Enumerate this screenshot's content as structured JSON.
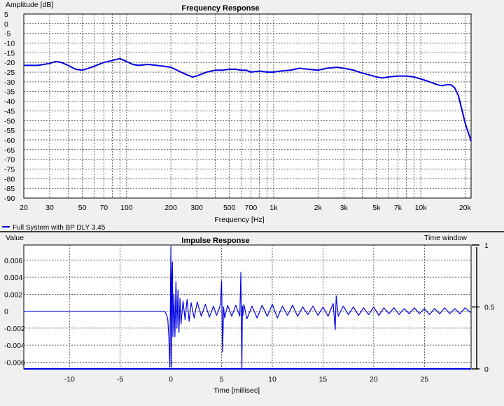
{
  "chart_data": [
    {
      "type": "line",
      "title": "Frequency Response",
      "xlabel": "Frequency [Hz]",
      "ylabel": "Amplitude [dB]",
      "xscale": "log",
      "xlim": [
        20,
        22000
      ],
      "ylim": [
        -90,
        5
      ],
      "grid": true,
      "x_ticks": [
        20,
        30,
        50,
        70,
        100,
        200,
        300,
        500,
        700,
        1000,
        2000,
        3000,
        5000,
        7000,
        10000,
        20000
      ],
      "x_tick_labels": [
        "20",
        "30",
        "50",
        "70",
        "100",
        "200",
        "300",
        "500",
        "700",
        "1k",
        "2k",
        "3k",
        "5k",
        "7k",
        "10k",
        "20k"
      ],
      "y_ticks": [
        5,
        0,
        -5,
        -10,
        -15,
        -20,
        -25,
        -30,
        -35,
        -40,
        -45,
        -50,
        -55,
        -60,
        -65,
        -70,
        -75,
        -80,
        -85,
        -90
      ],
      "y_tick_labels": [
        "5",
        "0",
        "-5",
        "-10",
        "-15",
        "-20",
        "-25",
        "-30",
        "-35",
        "-40",
        "-45",
        "-50",
        "-55",
        "-60",
        "-65",
        "-70",
        "-75",
        "-80",
        "-85",
        "-90"
      ],
      "legend": {
        "placement": "bottom-left",
        "entries": [
          "Full System with BP DLY 3.45"
        ]
      },
      "series": [
        {
          "name": "Full System with BP DLY 3.45",
          "color": "#0000e0",
          "x": [
            20,
            25,
            30,
            33,
            36,
            40,
            45,
            50,
            55,
            60,
            70,
            80,
            90,
            100,
            110,
            120,
            140,
            160,
            180,
            200,
            220,
            250,
            280,
            300,
            350,
            400,
            450,
            500,
            550,
            600,
            650,
            700,
            800,
            900,
            1000,
            1100,
            1300,
            1500,
            1700,
            2000,
            2300,
            2700,
            3000,
            3500,
            4000,
            4500,
            5000,
            5500,
            6000,
            7000,
            8000,
            9000,
            10000,
            11000,
            12000,
            13000,
            14000,
            15000,
            16000,
            17000,
            18000,
            19000,
            20000,
            21000,
            22000
          ],
          "y": [
            -21.5,
            -21.5,
            -20.5,
            -19.5,
            -20,
            -21.5,
            -23.5,
            -24,
            -23,
            -22,
            -20,
            -19,
            -18,
            -19.5,
            -21,
            -21.5,
            -21,
            -21.5,
            -22,
            -22.5,
            -24,
            -26,
            -27.5,
            -27,
            -25,
            -24,
            -24,
            -23.5,
            -23.5,
            -24,
            -24,
            -25,
            -24.5,
            -25,
            -25,
            -24.5,
            -24,
            -23,
            -23.5,
            -24,
            -23,
            -22.5,
            -23,
            -24,
            -25.5,
            -26.5,
            -27.5,
            -28,
            -27.5,
            -27,
            -27,
            -27.5,
            -28.5,
            -29.5,
            -30.5,
            -31.5,
            -32,
            -31.5,
            -31.5,
            -33,
            -37,
            -44,
            -51,
            -56,
            -60.5
          ]
        }
      ]
    },
    {
      "type": "line",
      "title": "Impulse Response",
      "xlabel": "Time [millisec]",
      "ylabel": "Value",
      "y2label": "Time window",
      "xlim": [
        -14.5,
        29.6
      ],
      "ylim": [
        -0.0068,
        0.0078
      ],
      "y2lim": [
        0,
        1
      ],
      "grid": true,
      "x_ticks": [
        -10,
        -5,
        0,
        5,
        10,
        15,
        20,
        25
      ],
      "x_tick_labels": [
        "-10",
        "-5",
        "0",
        "5",
        "10",
        "15",
        "20",
        "25"
      ],
      "y_ticks": [
        0.006,
        0.004,
        0.002,
        0,
        -0.002,
        -0.004,
        -0.006
      ],
      "y_tick_labels": [
        "0.006",
        "0.004",
        "0.002",
        "0",
        "-0.002",
        "-0.004",
        "-0.006"
      ],
      "y2_ticks": [
        1,
        0.5,
        0
      ],
      "y2_tick_labels": [
        "1",
        "0.5",
        "0"
      ],
      "series": [
        {
          "color": "#0000e0",
          "x": [
            -14.5,
            -0.6,
            -0.4,
            -0.3,
            -0.2,
            -0.1,
            0.0,
            0.05,
            0.1,
            0.15,
            0.2,
            0.3,
            0.4,
            0.5,
            0.6,
            0.7,
            0.8,
            0.9,
            1.0,
            1.2,
            1.4,
            1.6,
            1.8,
            2.0,
            2.3,
            2.6,
            3.0,
            3.4,
            3.8,
            4.2,
            4.5,
            4.8,
            4.9,
            5.0,
            5.1,
            5.2,
            5.3,
            5.6,
            6.0,
            6.4,
            6.8,
            6.9,
            7.0,
            7.05,
            7.1,
            7.2,
            7.5,
            8.0,
            8.5,
            9.0,
            9.5,
            10.0,
            10.5,
            11.0,
            11.5,
            12.0,
            12.5,
            13.0,
            13.5,
            14.0,
            14.5,
            15.0,
            15.5,
            16.0,
            16.2,
            16.3,
            16.5,
            17.0,
            17.5,
            18.0,
            18.5,
            19.0,
            19.5,
            20.0,
            20.5,
            21.0,
            21.5,
            22.0,
            22.5,
            23.0,
            23.5,
            24.0,
            24.5,
            25.0,
            25.5,
            26.0,
            26.5,
            27.0,
            27.5,
            28.0,
            28.5,
            29.0,
            29.6
          ],
          "y": [
            0,
            0,
            -0.0005,
            -0.001,
            -0.003,
            -0.0066,
            0.0076,
            -0.0066,
            0.004,
            0.0058,
            -0.003,
            0.002,
            -0.003,
            0.0035,
            -0.002,
            0.0025,
            -0.0025,
            0.0015,
            -0.0015,
            0.0012,
            -0.001,
            0.0014,
            -0.0012,
            0.001,
            -0.0008,
            0.0011,
            -0.0006,
            0.0008,
            -0.0007,
            0.0006,
            -0.0005,
            0.0004,
            0.001,
            0.0036,
            -0.0048,
            0.0005,
            -0.0008,
            0.0007,
            -0.0006,
            0.0007,
            -0.0006,
            0.0046,
            -0.0068,
            0.0006,
            -0.0005,
            0.0008,
            -0.0009,
            0.0006,
            -0.0008,
            0.0007,
            -0.0006,
            0.0008,
            -0.0008,
            0.0006,
            -0.0005,
            0.0007,
            -0.0006,
            0.0005,
            -0.0004,
            0.0006,
            -0.0005,
            0.0005,
            -0.0006,
            0.0009,
            -0.0022,
            0.0018,
            -0.0006,
            0.0006,
            -0.0004,
            0.0005,
            -0.0005,
            0.0004,
            -0.0004,
            0.0005,
            -0.0005,
            0.0004,
            -0.0003,
            0.0004,
            -0.0004,
            0.0003,
            -0.0003,
            0.0004,
            -0.0003,
            0.0003,
            -0.0004,
            0.0003,
            -0.0003,
            0.0004,
            -0.0003,
            0.0003,
            -0.0003,
            0.0004,
            -0.0002
          ]
        },
        {
          "color": "#0000e0",
          "axis": "y2",
          "x": [
            -14.5,
            29.6
          ],
          "y": [
            0,
            0
          ]
        }
      ]
    }
  ]
}
